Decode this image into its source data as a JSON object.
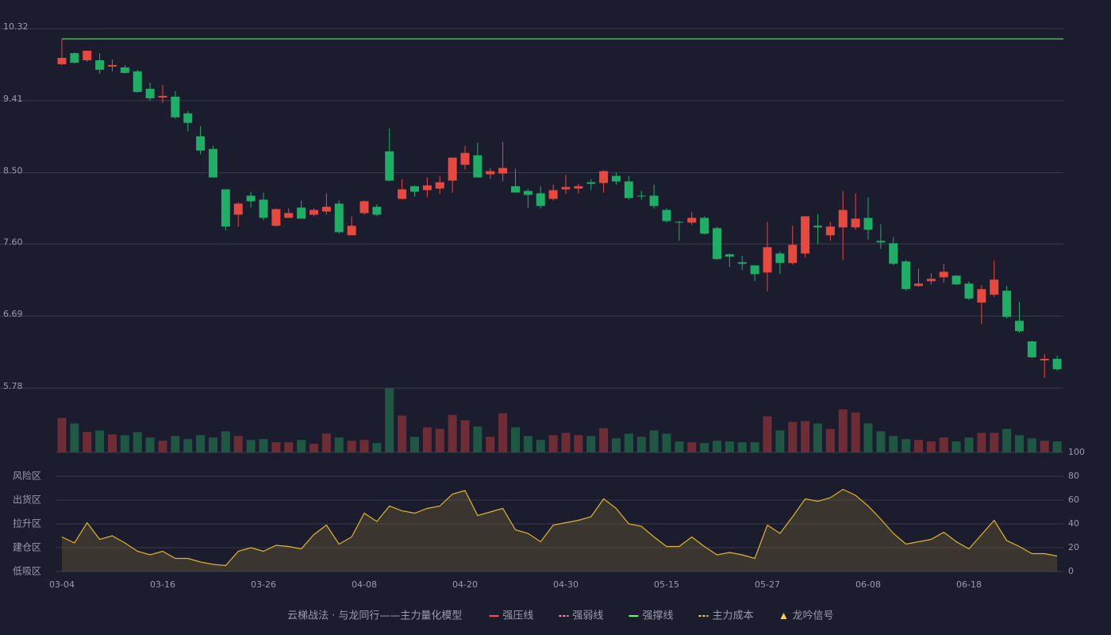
{
  "chart_data": [
    {
      "type": "candlestick",
      "categories": [
        "03-04",
        null,
        null,
        null,
        null,
        null,
        null,
        null,
        "03-16",
        null,
        null,
        null,
        null,
        null,
        null,
        null,
        "03-26",
        null,
        null,
        null,
        null,
        null,
        null,
        null,
        "04-08",
        null,
        null,
        null,
        null,
        null,
        null,
        null,
        "04-20",
        null,
        null,
        null,
        null,
        null,
        null,
        null,
        "04-30",
        null,
        null,
        null,
        null,
        null,
        null,
        null,
        "05-15",
        null,
        null,
        null,
        null,
        null,
        null,
        null,
        "05-27",
        null,
        null,
        null,
        null,
        null,
        null,
        null,
        "06-08",
        null,
        null,
        null,
        null,
        null,
        null,
        null,
        "06-18",
        null,
        null,
        null,
        null,
        null,
        null,
        null
      ],
      "open": [
        9.87,
        10.01,
        9.92,
        9.92,
        9.84,
        9.83,
        9.78,
        9.56,
        9.45,
        9.46,
        9.25,
        8.96,
        8.8,
        8.29,
        7.97,
        8.21,
        8.16,
        7.83,
        7.93,
        8.06,
        7.97,
        8.01,
        8.11,
        7.71,
        7.99,
        8.07,
        8.77,
        8.17,
        8.33,
        8.28,
        8.3,
        8.4,
        8.6,
        8.72,
        8.48,
        8.49,
        8.33,
        8.27,
        8.24,
        8.17,
        8.29,
        8.3,
        8.38,
        8.37,
        8.46,
        8.39,
        8.21,
        8.21,
        8.03,
        7.88,
        7.87,
        7.93,
        7.8,
        7.47,
        7.37,
        7.33,
        7.24,
        7.48,
        7.36,
        7.48,
        7.83,
        7.71,
        7.81,
        7.81,
        7.93,
        7.64,
        7.61,
        7.38,
        7.07,
        7.13,
        7.18,
        7.2,
        7.1,
        6.86,
        6.96,
        7.01,
        6.63,
        6.37,
        6.13,
        6.15
      ],
      "high": [
        10.19,
        10.02,
        10.04,
        10.01,
        9.93,
        9.86,
        9.8,
        9.64,
        9.61,
        9.53,
        9.28,
        9.09,
        8.84,
        8.29,
        8.13,
        8.26,
        8.25,
        8.05,
        8.05,
        8.15,
        8.05,
        8.24,
        8.15,
        7.95,
        8.15,
        8.1,
        9.06,
        8.42,
        8.34,
        8.44,
        8.46,
        8.69,
        8.84,
        8.88,
        8.56,
        8.89,
        8.55,
        8.3,
        8.33,
        8.35,
        8.47,
        8.36,
        8.42,
        8.53,
        8.5,
        8.46,
        8.27,
        8.35,
        8.05,
        7.89,
        8.0,
        7.95,
        7.82,
        7.48,
        7.45,
        7.33,
        7.88,
        7.51,
        7.83,
        7.95,
        7.98,
        7.88,
        8.27,
        8.24,
        8.19,
        7.85,
        7.69,
        7.4,
        7.29,
        7.23,
        7.35,
        7.21,
        7.13,
        7.08,
        7.39,
        7.07,
        6.87,
        6.38,
        6.21,
        6.19
      ],
      "low": [
        9.86,
        9.88,
        9.9,
        9.75,
        9.78,
        9.75,
        9.51,
        9.41,
        9.38,
        9.18,
        9.02,
        8.73,
        8.44,
        7.77,
        7.82,
        8.06,
        7.9,
        7.82,
        7.93,
        7.92,
        7.95,
        7.97,
        7.73,
        7.71,
        7.97,
        7.95,
        8.39,
        8.16,
        8.2,
        8.19,
        8.23,
        8.25,
        8.54,
        8.44,
        8.42,
        8.39,
        8.25,
        8.05,
        8.05,
        8.15,
        8.23,
        8.24,
        8.28,
        8.25,
        8.35,
        8.16,
        8.16,
        8.05,
        7.87,
        7.64,
        7.84,
        7.72,
        7.4,
        7.31,
        7.27,
        7.13,
        7.0,
        7.22,
        7.34,
        7.43,
        7.6,
        7.64,
        7.4,
        7.78,
        7.65,
        7.54,
        7.33,
        7.01,
        7.06,
        7.09,
        7.11,
        7.08,
        6.89,
        6.59,
        6.93,
        6.66,
        6.48,
        6.16,
        5.91,
        6.0
      ],
      "close": [
        9.95,
        9.89,
        10.04,
        9.8,
        9.86,
        9.76,
        9.52,
        9.44,
        9.47,
        9.2,
        9.13,
        8.78,
        8.44,
        7.82,
        8.11,
        8.14,
        7.93,
        8.04,
        7.99,
        7.92,
        8.03,
        8.07,
        7.75,
        7.83,
        8.14,
        7.97,
        8.4,
        8.29,
        8.26,
        8.34,
        8.38,
        8.69,
        8.75,
        8.44,
        8.52,
        8.56,
        8.25,
        8.22,
        8.08,
        8.28,
        8.32,
        8.33,
        8.36,
        8.52,
        8.39,
        8.18,
        8.2,
        8.08,
        7.89,
        7.87,
        7.93,
        7.73,
        7.41,
        7.44,
        7.35,
        7.22,
        7.56,
        7.36,
        7.59,
        7.95,
        7.81,
        7.82,
        8.03,
        7.92,
        7.78,
        7.62,
        7.35,
        7.03,
        7.1,
        7.16,
        7.25,
        7.09,
        6.91,
        7.03,
        7.15,
        6.68,
        6.5,
        6.17,
        6.15,
        6.02
      ],
      "up_color": "#e8493f",
      "down_color": "#1fae66",
      "ylim": [
        5.78,
        10.32
      ],
      "yticks": [
        5.78,
        6.69,
        {
          "value": 7.6,
          "label": "7.60"
        },
        {
          "value": 8.5,
          "label": "8.50"
        },
        9.41,
        10.32
      ],
      "grid": true,
      "support_line": {
        "value": 10.19,
        "color": "#5cff6a"
      },
      "legend": {
        "title": "云梯战法 · 与龙同行——主力量化模型",
        "title_color": "#e8c770",
        "items": [
          {
            "name": "强压线",
            "color": "#ff4a4a",
            "style": "solid"
          },
          {
            "name": "强弱线",
            "color": "#ff8fa3",
            "style": "dashed"
          },
          {
            "name": "强撑线",
            "color": "#5cff6a",
            "style": "solid"
          },
          {
            "name": "主力成本",
            "color": "#ffd23f",
            "style": "dashed"
          },
          {
            "name": "龙吟信号",
            "color": "#ffd23f",
            "style": "triangle"
          }
        ]
      }
    },
    {
      "type": "bar",
      "values": [
        44,
        37,
        26,
        28,
        23,
        22,
        26,
        19,
        15,
        21,
        17,
        22,
        19,
        27,
        21,
        16,
        17,
        13,
        13,
        16,
        11,
        24,
        19,
        15,
        16,
        12,
        82,
        47,
        20,
        32,
        30,
        48,
        41,
        33,
        20,
        50,
        32,
        21,
        16,
        22,
        25,
        22,
        21,
        31,
        18,
        24,
        20,
        28,
        24,
        14,
        13,
        12,
        15,
        14,
        13,
        13,
        46,
        28,
        39,
        40,
        37,
        30,
        55,
        51,
        37,
        27,
        21,
        17,
        16,
        14,
        19,
        14,
        19,
        25,
        25,
        30,
        22,
        18,
        15,
        14
      ],
      "up_color": "#6e2d35",
      "down_color": "#1e5843"
    },
    {
      "type": "area",
      "values": [
        29,
        24,
        41,
        27,
        30,
        24,
        17,
        14,
        17,
        11,
        11,
        8,
        6,
        5,
        17,
        20,
        17,
        22,
        21,
        19,
        31,
        39,
        23,
        29,
        49,
        42,
        55,
        51,
        49,
        53,
        55,
        65,
        68,
        47,
        50,
        53,
        35,
        32,
        25,
        39,
        41,
        43,
        46,
        61,
        53,
        40,
        38,
        29,
        21,
        21,
        29,
        21,
        14,
        16,
        14,
        11,
        39,
        32,
        46,
        61,
        59,
        62,
        69,
        64,
        55,
        44,
        32,
        23,
        25,
        27,
        33,
        25,
        19,
        31,
        43,
        26,
        21,
        15,
        15,
        13
      ],
      "color": "#e0b52a",
      "fill": "rgba(120,100,50,0.35)",
      "ylim": [
        0,
        100
      ],
      "yticks": [
        0,
        20,
        40,
        60,
        80,
        100
      ],
      "ytick_colors": [
        "#ff4a4a",
        "#ff7a3a",
        "#4d8cff",
        "#e040e0",
        "#f0a030",
        "#5cff6a"
      ],
      "zones": [
        {
          "value": 80,
          "label": "风险区",
          "color": "#f0a030"
        },
        {
          "value": 60,
          "label": "出货区",
          "color": "#e040e0"
        },
        {
          "value": 40,
          "label": "拉升区",
          "color": "#4d8cff"
        },
        {
          "value": 20,
          "label": "建仓区",
          "color": "#ff6a4a"
        },
        {
          "value": 0,
          "label": "低吸区",
          "color": "#ff4a4a"
        }
      ],
      "grid": true
    }
  ]
}
